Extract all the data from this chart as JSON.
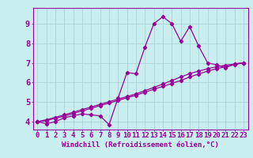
{
  "xlabel": "Windchill (Refroidissement éolien,°C)",
  "background_color": "#c8eef0",
  "line_color": "#990099",
  "grid_color": "#aad4d8",
  "x_ticks": [
    0,
    1,
    2,
    3,
    4,
    5,
    6,
    7,
    8,
    9,
    10,
    11,
    12,
    13,
    14,
    15,
    16,
    17,
    18,
    19,
    20,
    21,
    22,
    23
  ],
  "y_ticks": [
    4,
    5,
    6,
    7,
    8,
    9
  ],
  "xlim": [
    -0.5,
    23.5
  ],
  "ylim": [
    3.6,
    9.8
  ],
  "line1_x": [
    0,
    1,
    2,
    3,
    4,
    5,
    6,
    7,
    8,
    9,
    10,
    11,
    12,
    13,
    14,
    15,
    16,
    17,
    18,
    19,
    20,
    21,
    22,
    23
  ],
  "line1_y": [
    4.0,
    3.9,
    4.0,
    4.2,
    4.3,
    4.4,
    4.35,
    4.3,
    3.85,
    5.2,
    6.5,
    6.45,
    7.8,
    9.0,
    9.35,
    9.0,
    8.1,
    8.85,
    7.85,
    7.0,
    6.9,
    6.75,
    6.95,
    7.0
  ],
  "line2_x": [
    0,
    1,
    2,
    3,
    4,
    5,
    6,
    7,
    8,
    9,
    10,
    11,
    12,
    13,
    14,
    15,
    16,
    17,
    18,
    19,
    20,
    21,
    22,
    23
  ],
  "line2_y": [
    4.0,
    4.05,
    4.18,
    4.28,
    4.42,
    4.55,
    4.68,
    4.82,
    4.95,
    5.08,
    5.22,
    5.35,
    5.5,
    5.65,
    5.8,
    5.95,
    6.1,
    6.28,
    6.43,
    6.58,
    6.7,
    6.8,
    6.9,
    7.0
  ],
  "line3_x": [
    0,
    1,
    2,
    3,
    4,
    5,
    6,
    7,
    8,
    9,
    10,
    11,
    12,
    13,
    14,
    15,
    16,
    17,
    18,
    19,
    20,
    21,
    22,
    23
  ],
  "line3_y": [
    4.0,
    4.1,
    4.22,
    4.35,
    4.48,
    4.62,
    4.75,
    4.88,
    5.02,
    5.15,
    5.28,
    5.42,
    5.58,
    5.75,
    5.92,
    6.1,
    6.28,
    6.45,
    6.58,
    6.7,
    6.8,
    6.88,
    6.94,
    7.0
  ],
  "xlabel_fontsize": 6.5,
  "tick_fontsize": 6.5
}
